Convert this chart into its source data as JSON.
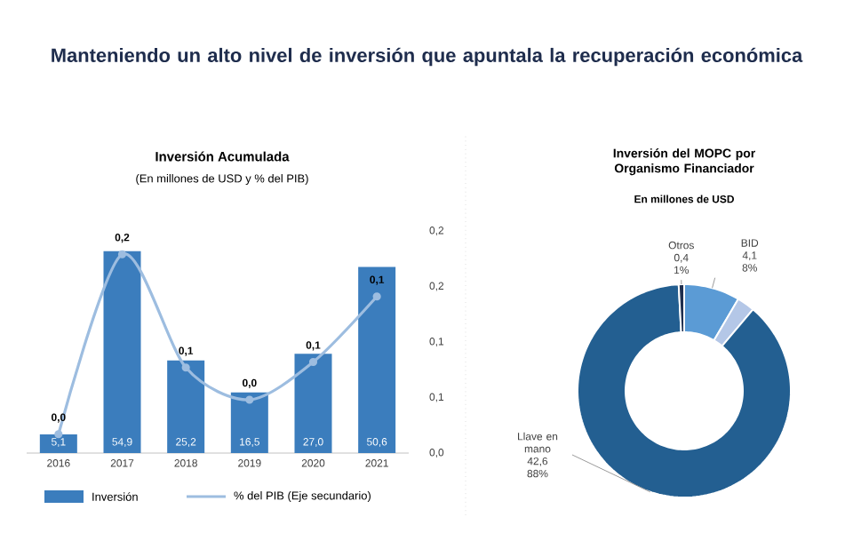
{
  "chart_data": [
    {
      "type": "other",
      "title": "Manteniendo un alto nivel de inversión que apuntala la recuperación económica"
    },
    {
      "type": "bar",
      "title": "Inversión Acumulada",
      "subtitle": "(En millones de USD y % del PIB)",
      "categories": [
        "2016",
        "2017",
        "2018",
        "2019",
        "2020",
        "2021"
      ],
      "y2lim": [
        0,
        0.2
      ],
      "y2ticks": [
        {
          "value": 0,
          "label": "0,0"
        },
        {
          "value": 0.05,
          "label": "0,1"
        },
        {
          "value": 0.1,
          "label": "0,1"
        },
        {
          "value": 0.15,
          "label": "0,2"
        },
        {
          "value": 0.2,
          "label": "0,2"
        }
      ],
      "legend": "bottom",
      "marker": "circle",
      "series": [
        {
          "name": "Inversión",
          "type": "bar",
          "color": "#3b7dbd",
          "values": [
            5.1,
            54.9,
            25.2,
            16.5,
            27.0,
            50.6
          ],
          "value_labels": [
            "5,1",
            "54,9",
            "25,2",
            "16,5",
            "27,0",
            "50,6"
          ]
        },
        {
          "name": "% del PIB (Eje secundario)",
          "type": "line",
          "axis": "y2",
          "color": "#9dbde0",
          "values": [
            0.017,
            0.179,
            0.077,
            0.048,
            0.082,
            0.141
          ],
          "value_labels": [
            "0,0",
            "0,2",
            "0,1",
            "0,0",
            "0,1",
            "0,1"
          ]
        }
      ]
    },
    {
      "type": "donut",
      "title": "Inversión del MOPC por Organismo Financiador",
      "subtitle": "En millones de USD",
      "categories": [
        "BID",
        null,
        "Llave en mano",
        "Otros"
      ],
      "values": [
        4.1,
        1.3,
        42.6,
        0.4
      ],
      "colors": [
        "#5b9bd5",
        "#b4c7e7",
        "#235f91",
        "#1f2f4f"
      ],
      "value_labels": [
        "4,1",
        null,
        "42,6",
        "0,4"
      ],
      "annotations": [
        "8%",
        "88%",
        "1%"
      ]
    }
  ]
}
